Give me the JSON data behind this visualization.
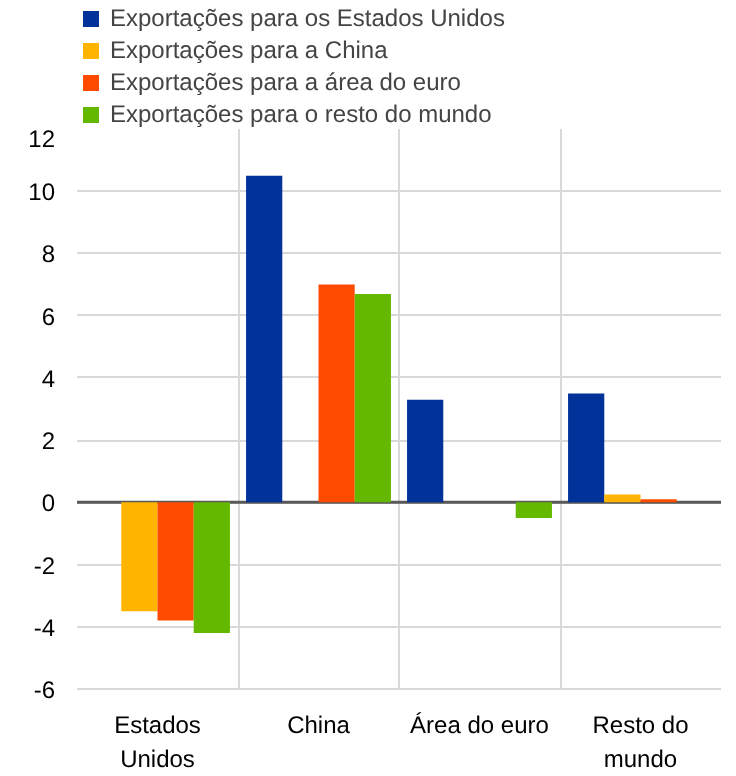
{
  "chart_data": {
    "type": "bar",
    "categories": [
      "Estados\nUnidos",
      "China",
      "Área do euro",
      "Resto do\nmundo"
    ],
    "series": [
      {
        "name": "Exportações para os Estados Unidos",
        "color": "#003299",
        "values": [
          null,
          10.5,
          3.3,
          3.5
        ]
      },
      {
        "name": "Exportações para a China",
        "color": "#ffb400",
        "values": [
          -3.5,
          null,
          null,
          0.25
        ]
      },
      {
        "name": "Exportações para a área do euro",
        "color": "#ff4b00",
        "values": [
          -3.8,
          7.0,
          null,
          0.1
        ]
      },
      {
        "name": "Exportações para o resto do mundo",
        "color": "#65b800",
        "values": [
          -4.2,
          6.7,
          -0.5,
          null
        ]
      }
    ],
    "ylim": [
      -6,
      12
    ],
    "yticks": [
      -6,
      -4,
      -2,
      0,
      2,
      4,
      6,
      8,
      10,
      12
    ],
    "grid": true,
    "legend": "top"
  }
}
